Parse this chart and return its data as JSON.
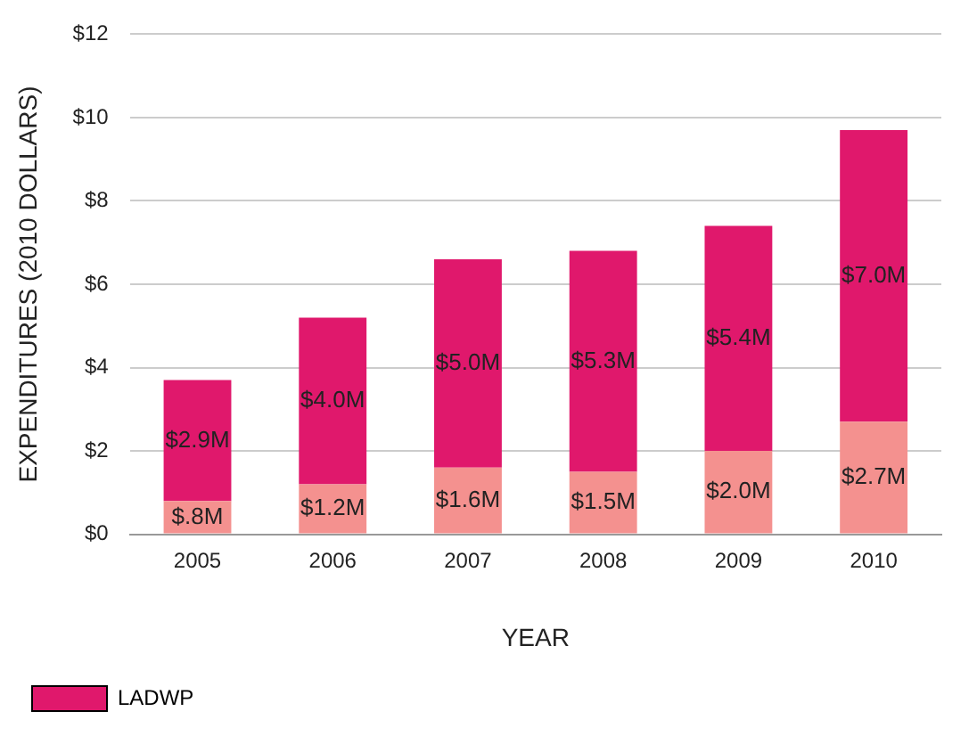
{
  "chart_data": {
    "type": "bar",
    "stacked": true,
    "xlabel": "YEAR",
    "ylabel": "EXPENDITURES (2010 DOLLARS)",
    "categories": [
      "2005",
      "2006",
      "2007",
      "2008",
      "2009",
      "2010"
    ],
    "series": [
      {
        "color": "#f4918f",
        "values": [
          0.8,
          1.2,
          1.6,
          1.5,
          2.0,
          2.7
        ],
        "value_labels": [
          "$.8M",
          "$1.2M",
          "$1.6M",
          "$1.5M",
          "$2.0M",
          "$2.7M"
        ]
      },
      {
        "name": "LADWP",
        "color": "#e0186c",
        "values": [
          2.9,
          4.0,
          5.0,
          5.3,
          5.4,
          7.0
        ],
        "value_labels": [
          "$2.9M",
          "$4.0M",
          "$5.0M",
          "$5.3M",
          "$5.4M",
          "$7.0M"
        ]
      }
    ],
    "ylim": [
      0,
      12
    ],
    "yticks": [
      {
        "value": 0,
        "label": "$0"
      },
      {
        "value": 2,
        "label": "$2"
      },
      {
        "value": 4,
        "label": "$4"
      },
      {
        "value": 6,
        "label": "$6"
      },
      {
        "value": 8,
        "label": "$8"
      },
      {
        "value": 10,
        "label": "$10"
      },
      {
        "value": 12,
        "label": "$12"
      }
    ],
    "grid": "y",
    "legend": "bottom"
  }
}
